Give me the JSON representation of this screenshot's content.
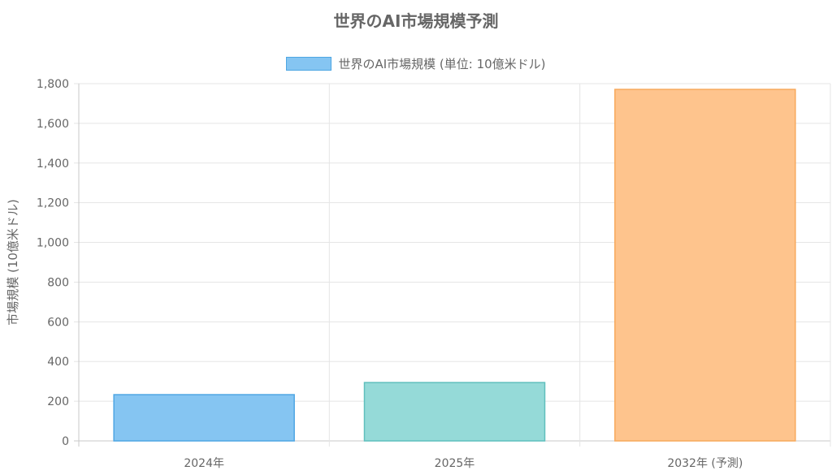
{
  "chart_data": {
    "type": "bar",
    "title": "世界のAI市場規模予測",
    "categories": [
      "2024年",
      "2025年",
      "2032年 (予測)"
    ],
    "series": [
      {
        "name": "世界のAI市場規模 (単位: 10億米ドル)",
        "values": [
          233,
          294,
          1771
        ]
      }
    ],
    "ylabel": "市場規模 (10億米ドル)",
    "xlabel": "",
    "ylim": [
      0,
      1800
    ],
    "yticks": [
      0,
      200,
      400,
      600,
      800,
      1000,
      1200,
      1400,
      1600,
      1800
    ],
    "ytick_labels": [
      "0",
      "200",
      "400",
      "600",
      "800",
      "1,000",
      "1,200",
      "1,400",
      "1,600",
      "1,800"
    ],
    "grid": true,
    "legend_position": "top",
    "bar_fill_colors": [
      "#85c5f2",
      "#95dad8",
      "#fec48d"
    ],
    "bar_stroke_colors": [
      "#4ea6e3",
      "#5fbfbd",
      "#f7a95c"
    ],
    "legend_fill": "#85c5f2",
    "legend_stroke": "#4ea6e3"
  }
}
